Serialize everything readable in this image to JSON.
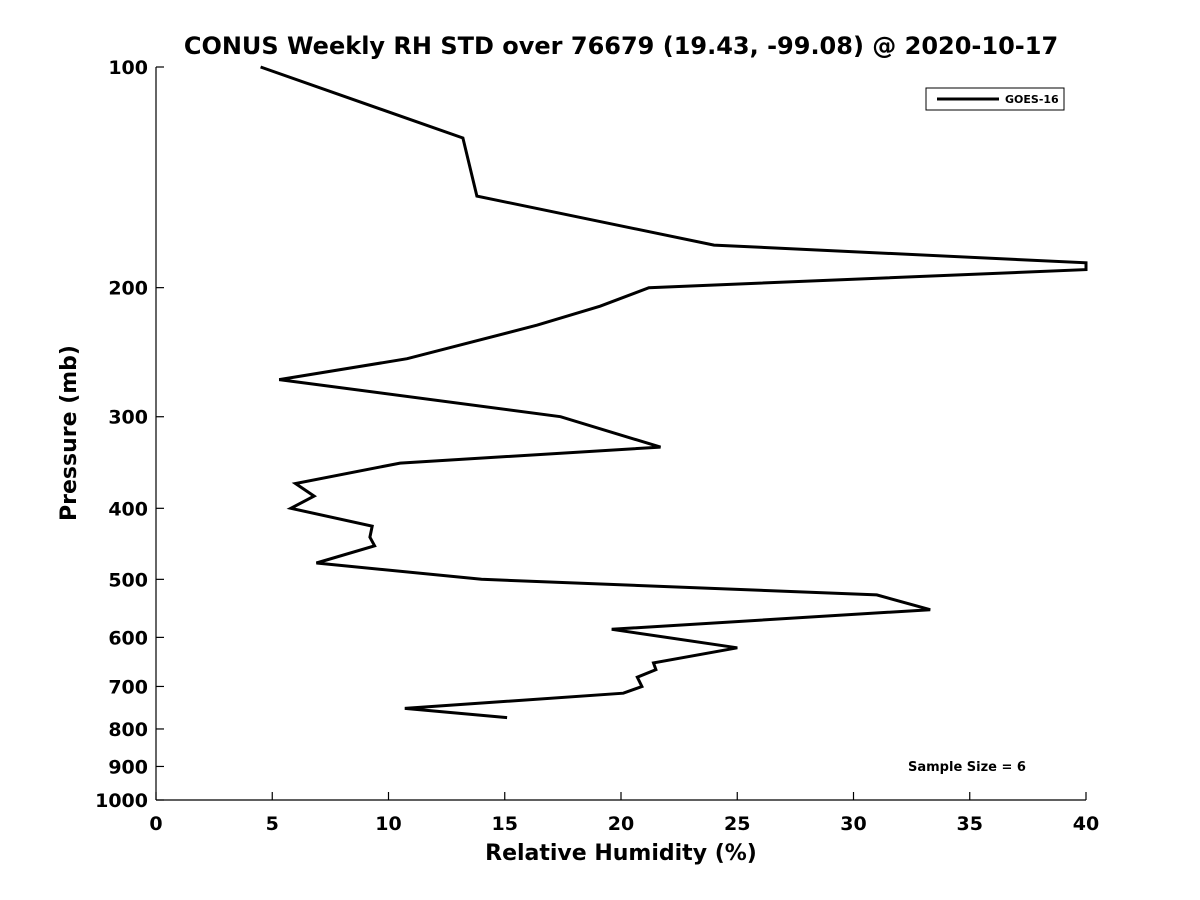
{
  "chart_data": {
    "type": "line",
    "title": "CONUS Weekly RH STD over 76679 (19.43, -99.08) @ 2020-10-17",
    "xlabel": "Relative Humidity (%)",
    "ylabel": "Pressure (mb)",
    "xlim": [
      0,
      40
    ],
    "ylim": [
      100,
      1000
    ],
    "yscale": "log",
    "y_inverted": true,
    "xticks": [
      0,
      5,
      10,
      15,
      20,
      25,
      30,
      35,
      40
    ],
    "xtick_labels": [
      "0",
      "5",
      "10",
      "15",
      "20",
      "25",
      "30",
      "35",
      "40"
    ],
    "yticks": [
      100,
      200,
      300,
      400,
      500,
      600,
      700,
      800,
      900,
      1000
    ],
    "ytick_labels": [
      "100",
      "200",
      "300",
      "400",
      "500",
      "600",
      "700",
      "800",
      "900",
      "1000"
    ],
    "grid": false,
    "legend_position": "top-right",
    "series": [
      {
        "name": "GOES-16",
        "color": "#000000",
        "points": [
          {
            "x": 4.5,
            "y": 100
          },
          {
            "x": 13.2,
            "y": 125
          },
          {
            "x": 13.8,
            "y": 150
          },
          {
            "x": 24.0,
            "y": 175
          },
          {
            "x": 40.0,
            "y": 185
          },
          {
            "x": 40.0,
            "y": 189
          },
          {
            "x": 21.2,
            "y": 200
          },
          {
            "x": 19.1,
            "y": 212
          },
          {
            "x": 16.4,
            "y": 225
          },
          {
            "x": 10.8,
            "y": 250
          },
          {
            "x": 5.3,
            "y": 267
          },
          {
            "x": 17.4,
            "y": 300
          },
          {
            "x": 21.7,
            "y": 330
          },
          {
            "x": 10.5,
            "y": 347
          },
          {
            "x": 6.0,
            "y": 370
          },
          {
            "x": 6.8,
            "y": 385
          },
          {
            "x": 5.8,
            "y": 400
          },
          {
            "x": 9.3,
            "y": 423
          },
          {
            "x": 9.2,
            "y": 438
          },
          {
            "x": 9.4,
            "y": 450
          },
          {
            "x": 6.9,
            "y": 475
          },
          {
            "x": 14.0,
            "y": 500
          },
          {
            "x": 31.0,
            "y": 525
          },
          {
            "x": 33.3,
            "y": 550
          },
          {
            "x": 19.6,
            "y": 585
          },
          {
            "x": 25.0,
            "y": 620
          },
          {
            "x": 21.4,
            "y": 650
          },
          {
            "x": 21.5,
            "y": 664
          },
          {
            "x": 20.7,
            "y": 680
          },
          {
            "x": 20.9,
            "y": 700
          },
          {
            "x": 20.1,
            "y": 715
          },
          {
            "x": 10.7,
            "y": 750
          },
          {
            "x": 15.1,
            "y": 772
          }
        ]
      }
    ],
    "legend": [
      {
        "label": "GOES-16",
        "color": "#000000"
      }
    ],
    "annotations": [
      {
        "text": "Sample Size = 6",
        "position": "bottom-right"
      }
    ]
  }
}
